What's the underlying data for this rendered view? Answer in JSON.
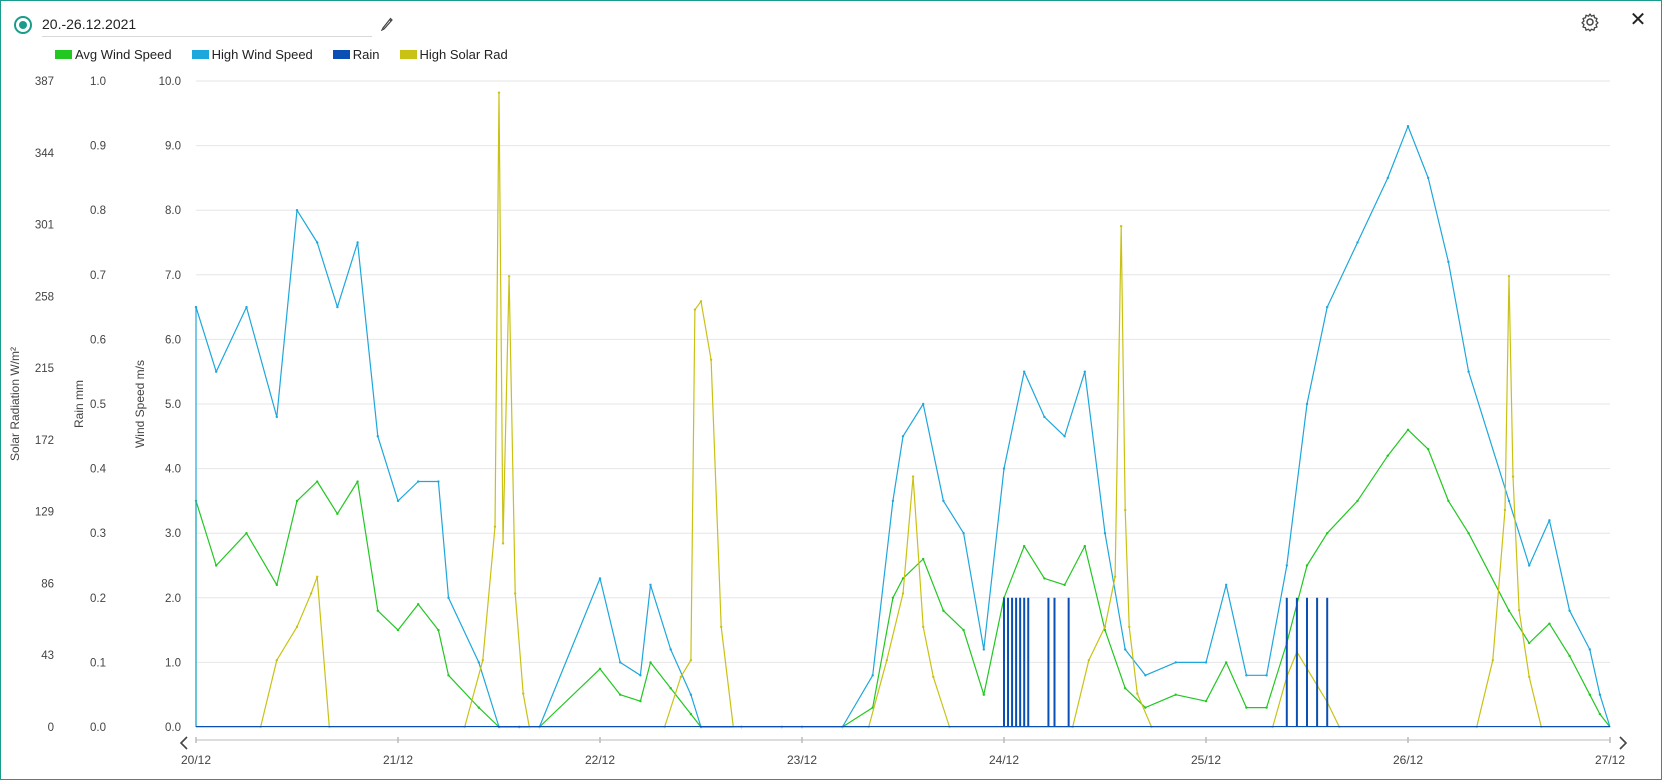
{
  "header": {
    "period_label": "20.-26.12.2021"
  },
  "icons": {
    "radio": "radio-selected-icon",
    "edit": "pencil-icon",
    "settings": "gear-icon",
    "close": "close-icon",
    "nav_prev": "chevron-left-icon",
    "nav_next": "chevron-right-icon"
  },
  "close_glyph": "✕",
  "colors": {
    "avg_wind": "#22c722",
    "high_wind": "#1ea7dc",
    "rain": "#0a4fb3",
    "solar": "#c9c214",
    "accent": "#1a9c8a",
    "grid": "#e6e6e6"
  },
  "chart_data": {
    "type": "line",
    "x_ticks": [
      "20/12",
      "21/12",
      "22/12",
      "23/12",
      "24/12",
      "25/12",
      "26/12",
      "27/12"
    ],
    "axes": {
      "solar": {
        "label": "Solar Radiation W/m²",
        "ticks": [
          "0",
          "43",
          "86",
          "129",
          "172",
          "215",
          "258",
          "301",
          "344",
          "387"
        ],
        "range": [
          0,
          387
        ]
      },
      "rain": {
        "label": "Rain mm",
        "ticks": [
          "0.0",
          "0.1",
          "0.2",
          "0.3",
          "0.4",
          "0.5",
          "0.6",
          "0.7",
          "0.8",
          "0.9",
          "1.0"
        ],
        "range": [
          0,
          1
        ]
      },
      "wind": {
        "label": "Wind Speed m/s",
        "ticks": [
          "0.0",
          "1.0",
          "2.0",
          "3.0",
          "4.0",
          "5.0",
          "6.0",
          "7.0",
          "8.0",
          "9.0",
          "10.0"
        ],
        "range": [
          0,
          10
        ]
      }
    },
    "grid": true,
    "legend_position": "top-left",
    "series": [
      {
        "name": "Avg Wind Speed",
        "axis": "wind",
        "color": "#22c722",
        "x": [
          0,
          0.1,
          0.25,
          0.4,
          0.5,
          0.6,
          0.7,
          0.8,
          0.9,
          1.0,
          1.1,
          1.2,
          1.25,
          1.4,
          1.5,
          1.6,
          1.65,
          1.7,
          2.0,
          2.1,
          2.2,
          2.25,
          2.35,
          2.45,
          2.5,
          2.7,
          2.9,
          3.0,
          3.2,
          3.35,
          3.45,
          3.5,
          3.6,
          3.7,
          3.8,
          3.9,
          4.0,
          4.1,
          4.2,
          4.3,
          4.4,
          4.5,
          4.6,
          4.7,
          4.85,
          5.0,
          5.1,
          5.2,
          5.3,
          5.4,
          5.5,
          5.6,
          5.75,
          5.9,
          6.0,
          6.1,
          6.2,
          6.3,
          6.5,
          6.6,
          6.7,
          6.8,
          6.9,
          6.95
        ],
        "y": [
          3.5,
          2.5,
          3.0,
          2.2,
          3.5,
          3.8,
          3.3,
          3.8,
          1.8,
          1.5,
          1.9,
          1.5,
          0.8,
          0.3,
          0,
          0,
          0,
          0,
          0.9,
          0.5,
          0.4,
          1.0,
          0.6,
          0.2,
          0,
          0,
          0,
          0,
          0,
          0.3,
          2.0,
          2.3,
          2.6,
          1.8,
          1.5,
          0.5,
          2.0,
          2.8,
          2.3,
          2.2,
          2.8,
          1.5,
          0.6,
          0.3,
          0.5,
          0.4,
          1.0,
          0.3,
          0.3,
          1.3,
          2.5,
          3.0,
          3.5,
          4.2,
          4.6,
          4.3,
          3.5,
          3.0,
          1.8,
          1.3,
          1.6,
          1.1,
          0.5,
          0.2
        ]
      },
      {
        "name": "High Wind Speed",
        "axis": "wind",
        "color": "#1ea7dc",
        "x": [
          0,
          0.1,
          0.25,
          0.4,
          0.5,
          0.6,
          0.7,
          0.8,
          0.9,
          1.0,
          1.1,
          1.2,
          1.25,
          1.4,
          1.5,
          1.6,
          1.65,
          1.7,
          2.0,
          2.1,
          2.2,
          2.25,
          2.35,
          2.45,
          2.5,
          2.7,
          2.9,
          3.0,
          3.2,
          3.35,
          3.45,
          3.5,
          3.6,
          3.7,
          3.8,
          3.9,
          4.0,
          4.1,
          4.2,
          4.3,
          4.4,
          4.5,
          4.6,
          4.7,
          4.85,
          5.0,
          5.1,
          5.2,
          5.3,
          5.4,
          5.5,
          5.6,
          5.75,
          5.9,
          6.0,
          6.1,
          6.2,
          6.3,
          6.5,
          6.6,
          6.7,
          6.8,
          6.9,
          6.95
        ],
        "y": [
          6.5,
          5.5,
          6.5,
          4.8,
          8.0,
          7.5,
          6.5,
          7.5,
          4.5,
          3.5,
          3.8,
          3.8,
          2.0,
          1.0,
          0,
          0,
          0,
          0,
          2.3,
          1.0,
          0.8,
          2.2,
          1.2,
          0.5,
          0,
          0,
          0,
          0,
          0,
          0.8,
          3.5,
          4.5,
          5.0,
          3.5,
          3.0,
          1.2,
          4.0,
          5.5,
          4.8,
          4.5,
          5.5,
          3.0,
          1.2,
          0.8,
          1.0,
          1.0,
          2.2,
          0.8,
          0.8,
          2.5,
          5.0,
          6.5,
          7.5,
          8.5,
          9.3,
          8.5,
          7.2,
          5.5,
          3.5,
          2.5,
          3.2,
          1.8,
          1.2,
          0.5
        ]
      },
      {
        "name": "Rain",
        "axis": "rain",
        "color": "#0a4fb3",
        "x": [
          4.0,
          4.02,
          4.04,
          4.06,
          4.08,
          4.1,
          4.12,
          4.22,
          4.25,
          4.32,
          5.4,
          5.45,
          5.5,
          5.55,
          5.6
        ],
        "y": [
          0.2,
          0.2,
          0.2,
          0.2,
          0.2,
          0.2,
          0.2,
          0.2,
          0.2,
          0.2,
          0.2,
          0.2,
          0.2,
          0.2,
          0.2
        ]
      },
      {
        "name": "High Solar Rad",
        "axis": "solar",
        "color": "#c9c214",
        "x": [
          0.32,
          0.4,
          0.5,
          0.57,
          0.6,
          0.66,
          1.33,
          1.42,
          1.48,
          1.5,
          1.52,
          1.55,
          1.58,
          1.62,
          1.65,
          2.32,
          2.4,
          2.45,
          2.47,
          2.5,
          2.55,
          2.6,
          2.66,
          3.33,
          3.42,
          3.5,
          3.55,
          3.6,
          3.65,
          3.73,
          4.34,
          4.42,
          4.5,
          4.55,
          4.58,
          4.6,
          4.62,
          4.66,
          4.73,
          5.33,
          5.4,
          5.45,
          5.5,
          5.55,
          5.6,
          5.66,
          6.34,
          6.42,
          6.48,
          6.5,
          6.52,
          6.55,
          6.6,
          6.66
        ],
        "y": [
          0,
          40,
          60,
          80,
          90,
          0,
          0,
          40,
          120,
          380,
          110,
          270,
          80,
          20,
          0,
          0,
          30,
          40,
          250,
          255,
          220,
          60,
          0,
          0,
          40,
          80,
          150,
          60,
          30,
          0,
          0,
          40,
          60,
          90,
          300,
          130,
          60,
          20,
          0,
          0,
          30,
          45,
          35,
          25,
          15,
          0,
          0,
          40,
          130,
          270,
          150,
          70,
          30,
          0
        ]
      }
    ]
  }
}
